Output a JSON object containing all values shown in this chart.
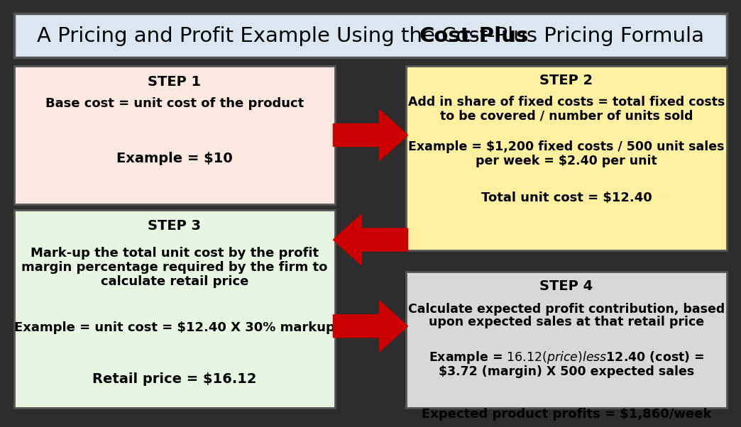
{
  "title_bg": "#dce6f1",
  "title_border": "#555555",
  "bg_color": "#2d2d2d",
  "step1_bg": "#fde8e0",
  "step1_border": "#555555",
  "step2_bg": "#fef0a0",
  "step2_border": "#555555",
  "step3_bg": "#e8f5e0",
  "step3_border": "#555555",
  "step4_bg": "#d8d8d8",
  "step4_border": "#555555",
  "arrow_color": "#cc0000",
  "title_prefix": "A Pricing and Profit Example Using the ",
  "title_bold": "Cost-Plus",
  "title_suffix": " Pricing Formula",
  "step1_title": "STEP 1",
  "step1_body": "Base cost = unit cost of the product\n\nExample = $10",
  "step2_title": "STEP 2",
  "step2_body": "Add in share of fixed costs = total fixed costs\nto be covered / number of units sold\n\nExample = $1,200 fixed costs / 500 unit sales\nper week = $2.40 per unit\n\nTotal unit cost = $12.40",
  "step3_title": "STEP 3",
  "step3_body": "Mark-up the total unit cost by the profit\nmargin percentage required by the firm to\ncalculate retail price\n\nExample = unit cost = $12.40 X 30% markup\n\nRetail price = $16.12",
  "step4_title": "STEP 4",
  "step4_body": "Calculate expected profit contribution, based\nupon expected sales at that retail price\n\nExample = $16.12 (price) less $12.40 (cost) =\n$3.72 (margin) X 500 expected sales\n\nExpected product profits = $1,860/week"
}
